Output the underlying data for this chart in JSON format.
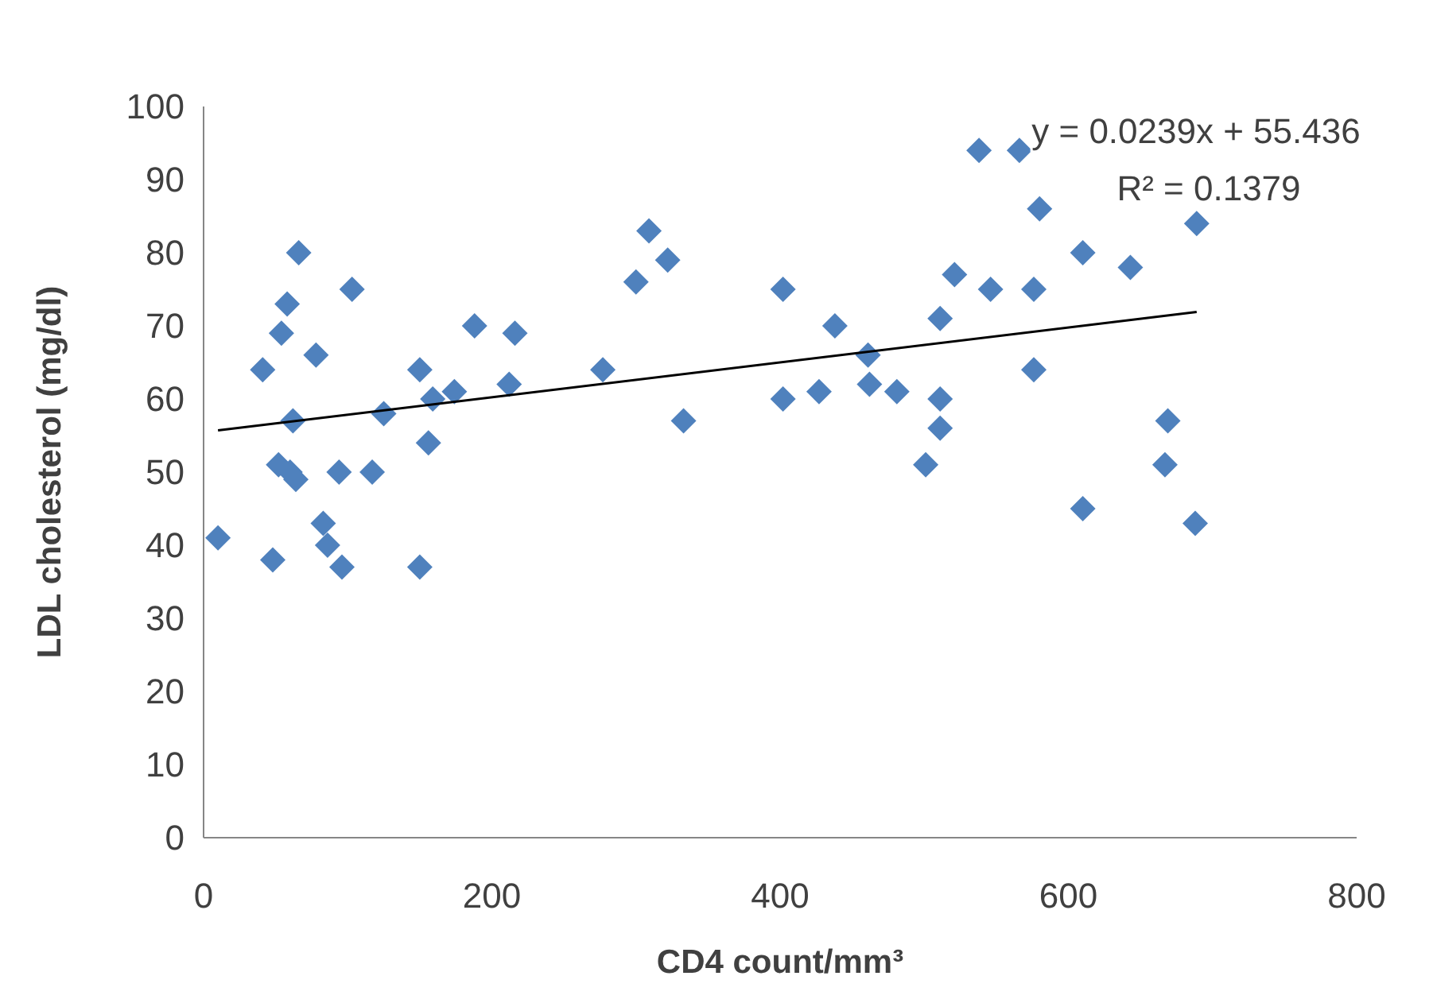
{
  "chart_data": {
    "type": "scatter",
    "xlabel": "CD4 count/mm³",
    "ylabel": "LDL cholesterol (mg/dl)",
    "xlim": [
      0,
      800
    ],
    "xticks": [
      0,
      200,
      400,
      600,
      800
    ],
    "ylim": [
      0,
      100
    ],
    "yticks": [
      0,
      10,
      20,
      30,
      40,
      50,
      60,
      70,
      80,
      90,
      100
    ],
    "grid": false,
    "marker": "diamond",
    "annotations": [
      "y = 0.0239x + 55.436",
      "R² = 0.1379"
    ],
    "series": [
      {
        "color": "#4f81bd",
        "x": [
          10,
          41,
          48,
          52,
          54,
          58,
          60,
          62,
          64,
          66,
          78,
          83,
          86,
          94,
          96,
          103,
          117,
          125,
          150,
          150,
          156,
          159,
          174,
          188,
          212,
          216,
          277,
          300,
          309,
          322,
          333,
          402,
          402,
          427,
          438,
          461,
          462,
          481,
          501,
          511,
          511,
          511,
          521,
          538,
          546,
          566,
          576,
          576,
          580,
          610,
          610,
          643,
          667,
          669,
          689,
          688
        ],
        "values": [
          41,
          64,
          38,
          51,
          69,
          73,
          50,
          57,
          49,
          80,
          66,
          43,
          40,
          50,
          37,
          75,
          50,
          58,
          37,
          64,
          54,
          60,
          61,
          70,
          62,
          69,
          64,
          76,
          83,
          79,
          57,
          75,
          60,
          61,
          70,
          66,
          62,
          61,
          51,
          71,
          60,
          56,
          77,
          94,
          75,
          94,
          64,
          75,
          86,
          80,
          45,
          78,
          51,
          57,
          84,
          43
        ]
      },
      {
        "type": "line",
        "color": "#000000",
        "marker": "none",
        "x": [
          10,
          689
        ],
        "values": [
          55.7,
          71.9
        ]
      }
    ]
  }
}
